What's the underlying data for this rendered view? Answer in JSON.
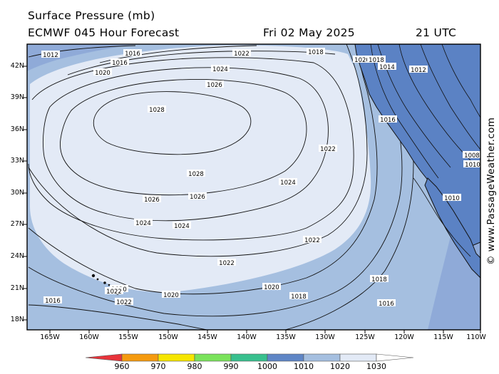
{
  "header": {
    "title": "Surface Pressure (mb)",
    "model": "ECMWF 045 Hour Forecast",
    "date": "Fri 02 May 2025",
    "time": "21 UTC"
  },
  "credit": "© www.PassageWeather.com",
  "axes": {
    "lat_labels": [
      "42N",
      "39N",
      "36N",
      "33N",
      "30N",
      "27N",
      "24N",
      "21N",
      "18N"
    ],
    "lon_labels": [
      "165W",
      "160W",
      "155W",
      "150W",
      "145W",
      "140W",
      "135W",
      "130W",
      "125W",
      "120W",
      "115W",
      "110W"
    ]
  },
  "colorbar": {
    "labels": [
      "960",
      "970",
      "980",
      "990",
      "1000",
      "1010",
      "1020",
      "1030"
    ],
    "colors": [
      "#e8333a",
      "#f59a0f",
      "#f6e600",
      "#7ae35b",
      "#38c08e",
      "#5f86c6",
      "#a5bfe0",
      "#e3eaf6"
    ]
  },
  "isobar_labels": [
    "1012",
    "1016",
    "1020",
    "1024",
    "1026",
    "1028",
    "1022",
    "1018",
    "1016",
    "1028",
    "1026",
    "1024",
    "1024",
    "1026",
    "1022",
    "1024",
    "1022",
    "1022",
    "1020",
    "1020",
    "1020",
    "1018",
    "1018",
    "1016",
    "1016",
    "1022",
    "1022",
    "1020",
    "1018",
    "1016",
    "1014",
    "1012",
    "1010",
    "1008",
    "1010"
  ],
  "colors": {
    "land": "#5b82c4",
    "fill_1020": "#a5bfe0",
    "fill_1030": "#e3eaf6",
    "fill_1016": "#8faad8"
  }
}
